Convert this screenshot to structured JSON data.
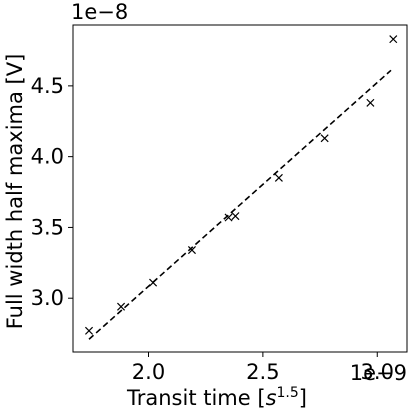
{
  "chart_data": {
    "type": "scatter",
    "title": "",
    "xlabel": "Transit time [s^{1.5}]",
    "ylabel": "Full width half maxima [V]",
    "x_offset_text": "1e−9",
    "y_offset_text": "1e−8",
    "xlim": [
      1.67,
      3.13
    ],
    "ylim": [
      2.62,
      4.93
    ],
    "xticks": [
      2.0,
      2.5,
      3.0
    ],
    "xtick_labels": [
      "2.0",
      "2.5",
      "3.0"
    ],
    "yticks": [
      3.0,
      3.5,
      4.0,
      4.5
    ],
    "ytick_labels": [
      "3.0",
      "3.5",
      "4.0",
      "4.5"
    ],
    "grid": false,
    "series": [
      {
        "marker": "x",
        "color": "#000000",
        "x": [
          1.74,
          1.88,
          2.02,
          2.19,
          2.35,
          2.38,
          2.57,
          2.77,
          2.97,
          3.07
        ],
        "y": [
          2.77,
          2.94,
          3.11,
          3.34,
          3.57,
          3.58,
          3.85,
          4.13,
          4.38,
          4.83
        ]
      },
      {
        "style": "dashed",
        "color": "#000000",
        "x": [
          1.74,
          3.06
        ],
        "y": [
          2.71,
          4.61
        ]
      }
    ]
  }
}
